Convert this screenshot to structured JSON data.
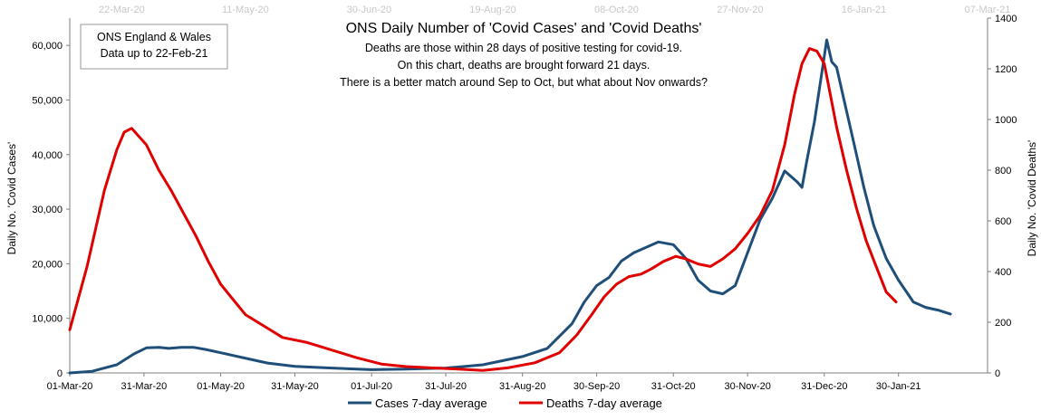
{
  "chart_data": {
    "type": "line",
    "title": "ONS Daily Number of 'Covid Cases' and 'Covid Deaths'",
    "subtitle_lines": [
      "Deaths are those within 28 days of positive testing for covid-19.",
      "On this chart, deaths are brought forward 21 days.",
      "There is a  better match around Sep to Oct, but what about Nov onwards?"
    ],
    "info_box_lines": [
      "ONS England & Wales",
      "Data up to 22-Feb-21"
    ],
    "ylabel_left": "Daily No. 'Covid Cases'",
    "ylabel_right": "Daily No. 'Covid Deaths'",
    "y_left_range": [
      0,
      65000
    ],
    "y_right_range": [
      0,
      1400
    ],
    "y_left_ticks": [
      "0",
      "10,000",
      "20,000",
      "30,000",
      "40,000",
      "50,000",
      "60,000"
    ],
    "y_right_ticks": [
      "0",
      "200",
      "400",
      "600",
      "800",
      "1000",
      "1200",
      "1400"
    ],
    "x_ticks_bottom": [
      "01-Mar-20",
      "31-Mar-20",
      "01-May-20",
      "31-May-20",
      "01-Jul-20",
      "31-Jul-20",
      "31-Aug-20",
      "30-Sep-20",
      "31-Oct-20",
      "30-Nov-20",
      "31-Dec-20",
      "30-Jan-21"
    ],
    "x_ticks_top": [
      "22-Mar-20",
      "11-May-20",
      "30-Jun-20",
      "19-Aug-20",
      "08-Oct-20",
      "27-Nov-20",
      "16-Jan-21",
      "07-Mar-21"
    ],
    "legend": "bottom",
    "grid": false,
    "series": [
      {
        "name": "Cases 7-day average",
        "axis": "left",
        "color": "#1f4e79",
        "x": [
          "2020-03-01",
          "2020-03-10",
          "2020-03-20",
          "2020-03-27",
          "2020-04-01",
          "2020-04-06",
          "2020-04-10",
          "2020-04-15",
          "2020-04-20",
          "2020-04-25",
          "2020-05-01",
          "2020-05-10",
          "2020-05-20",
          "2020-05-31",
          "2020-06-15",
          "2020-07-01",
          "2020-07-15",
          "2020-07-31",
          "2020-08-15",
          "2020-08-31",
          "2020-09-10",
          "2020-09-20",
          "2020-09-25",
          "2020-09-30",
          "2020-10-05",
          "2020-10-10",
          "2020-10-15",
          "2020-10-20",
          "2020-10-25",
          "2020-10-31",
          "2020-11-05",
          "2020-11-10",
          "2020-11-15",
          "2020-11-20",
          "2020-11-25",
          "2020-11-30",
          "2020-12-05",
          "2020-12-10",
          "2020-12-15",
          "2020-12-20",
          "2020-12-22",
          "2020-12-24",
          "2020-12-27",
          "2020-12-30",
          "2021-01-01",
          "2021-01-03",
          "2021-01-05",
          "2021-01-08",
          "2021-01-12",
          "2021-01-16",
          "2021-01-20",
          "2021-01-25",
          "2021-01-30",
          "2021-02-05",
          "2021-02-10",
          "2021-02-15",
          "2021-02-20"
        ],
        "y": [
          0,
          300,
          1500,
          3500,
          4600,
          4700,
          4500,
          4700,
          4700,
          4300,
          3700,
          2800,
          1800,
          1200,
          900,
          600,
          700,
          900,
          1500,
          3000,
          4500,
          9000,
          13000,
          16000,
          17500,
          20500,
          22000,
          23000,
          24000,
          23500,
          21000,
          17000,
          15000,
          14500,
          16000,
          22000,
          28000,
          32000,
          37000,
          35000,
          34000,
          39000,
          46000,
          55000,
          61000,
          57000,
          56000,
          50000,
          42000,
          34000,
          27000,
          21000,
          17000,
          13000,
          12000,
          11500,
          10800
        ]
      },
      {
        "name": "Deaths 7-day average",
        "axis": "right",
        "color": "#e00000",
        "x": [
          "2020-03-01",
          "2020-03-08",
          "2020-03-15",
          "2020-03-20",
          "2020-03-23",
          "2020-03-26",
          "2020-04-01",
          "2020-04-06",
          "2020-04-11",
          "2020-04-16",
          "2020-04-21",
          "2020-04-26",
          "2020-05-01",
          "2020-05-06",
          "2020-05-11",
          "2020-05-16",
          "2020-05-21",
          "2020-05-26",
          "2020-06-05",
          "2020-06-15",
          "2020-06-25",
          "2020-07-05",
          "2020-07-15",
          "2020-07-25",
          "2020-08-05",
          "2020-08-15",
          "2020-08-25",
          "2020-09-05",
          "2020-09-15",
          "2020-09-22",
          "2020-09-28",
          "2020-10-03",
          "2020-10-08",
          "2020-10-13",
          "2020-10-18",
          "2020-10-22",
          "2020-10-27",
          "2020-11-01",
          "2020-11-05",
          "2020-11-10",
          "2020-11-15",
          "2020-11-20",
          "2020-11-25",
          "2020-11-30",
          "2020-12-05",
          "2020-12-10",
          "2020-12-15",
          "2020-12-19",
          "2020-12-22",
          "2020-12-25",
          "2020-12-28",
          "2020-12-31",
          "2021-01-02",
          "2021-01-05",
          "2021-01-09",
          "2021-01-13",
          "2021-01-17",
          "2021-01-21",
          "2021-01-25",
          "2021-01-29"
        ],
        "y": [
          170,
          420,
          720,
          880,
          950,
          965,
          900,
          800,
          720,
          630,
          540,
          440,
          350,
          290,
          230,
          200,
          170,
          140,
          120,
          90,
          60,
          35,
          25,
          20,
          15,
          10,
          20,
          40,
          80,
          150,
          230,
          300,
          350,
          380,
          390,
          410,
          440,
          460,
          450,
          430,
          420,
          450,
          490,
          550,
          620,
          720,
          900,
          1100,
          1220,
          1280,
          1270,
          1220,
          1120,
          970,
          800,
          650,
          520,
          420,
          320,
          280
        ]
      }
    ]
  }
}
